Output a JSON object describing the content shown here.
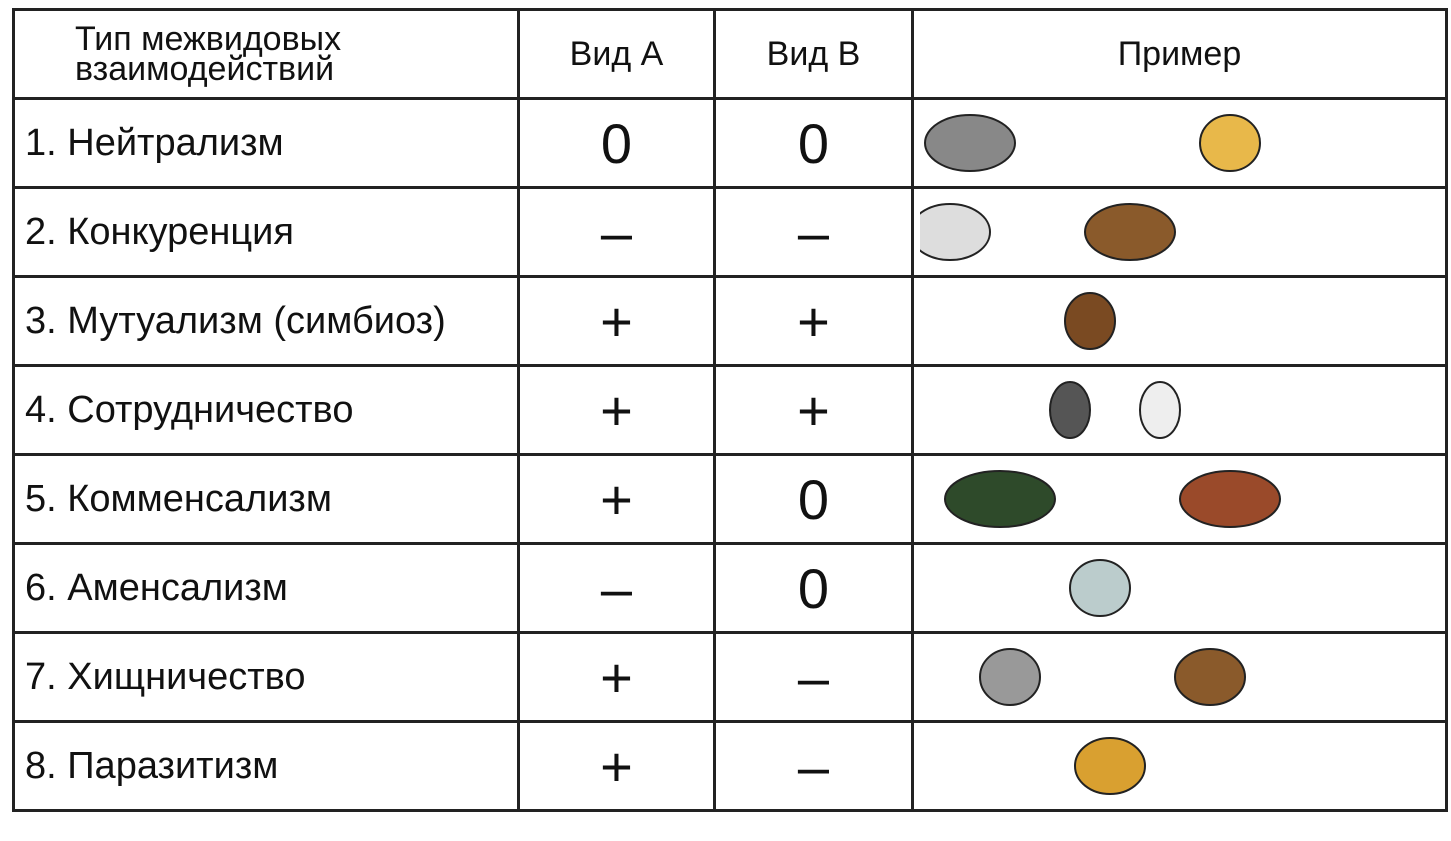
{
  "table": {
    "header": [
      "Тип межвидовых взаимодействий",
      "Вид А",
      "Вид В",
      "Пример"
    ],
    "rows": [
      [
        "1. Нейтрализм",
        "0",
        "0"
      ],
      [
        "2. Конкуренция",
        "–",
        "–"
      ],
      [
        "3. Мутуализм (симбиоз)",
        "+",
        "+"
      ],
      [
        "4. Сотрудничество",
        "+",
        "+"
      ],
      [
        "5. Комменсализм",
        "+",
        "0"
      ],
      [
        "6. Аменсализм",
        "–",
        "0"
      ],
      [
        "7. Хищничество",
        "+",
        "–"
      ],
      [
        "8. Паразитизм",
        "+",
        "–"
      ]
    ]
  }
}
